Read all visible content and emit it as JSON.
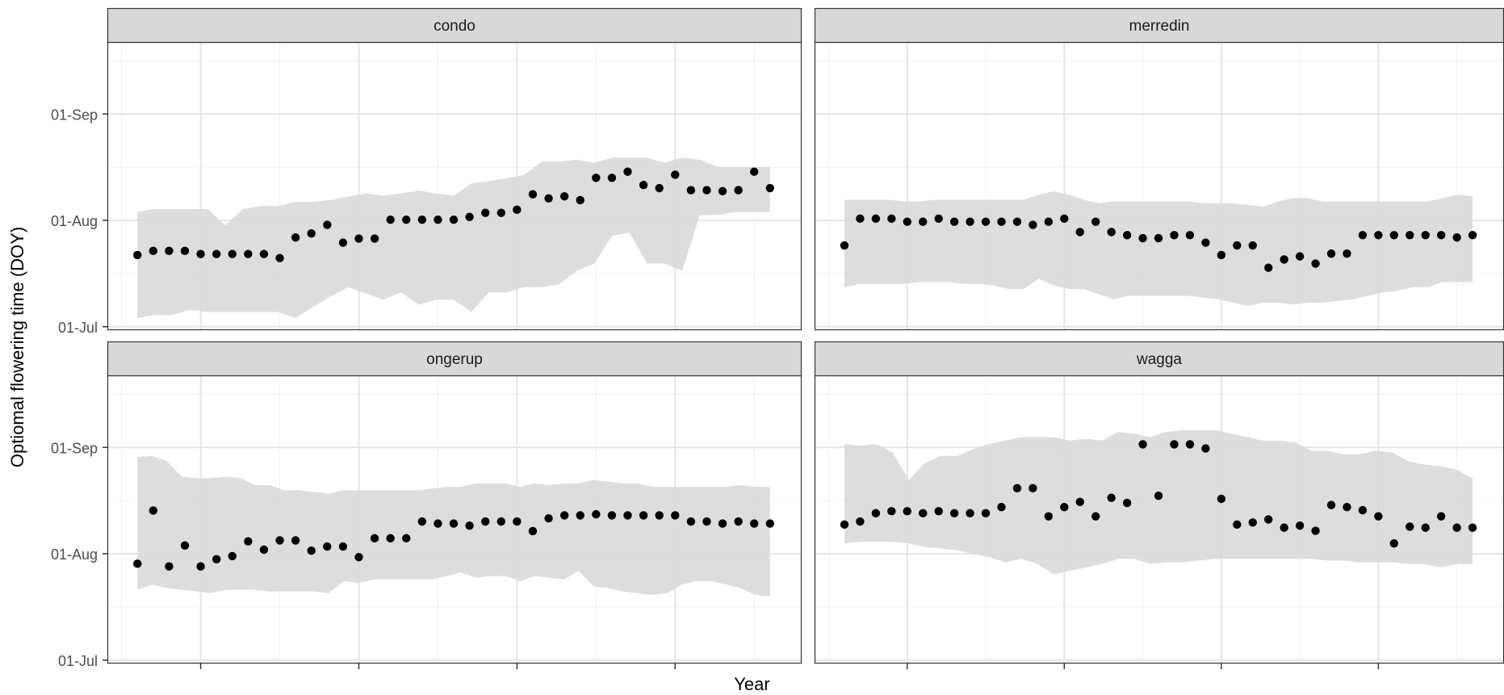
{
  "chart_data": {
    "type": "scatter",
    "xlabel": "Year",
    "ylabel": "Optiomal flowering time (DOY)",
    "grid": true,
    "y_ticks": [
      {
        "label": "01-Jul",
        "value": 182
      },
      {
        "label": "01-Aug",
        "value": 213
      },
      {
        "label": "01-Sep",
        "value": 244
      }
    ],
    "ylim": [
      181,
      265
    ],
    "x_note": "x tick labels not shown; points indexed 1..41",
    "xlim": [
      -0.9,
      43
    ],
    "x_major_ticks": [
      5,
      15,
      25,
      35
    ],
    "x_minor_ticks": [
      0,
      10,
      20,
      30,
      40
    ],
    "facets": [
      {
        "name": "condo",
        "x_start": 1,
        "points": [
          202.9,
          204.1,
          204.1,
          204.1,
          203.2,
          203.2,
          203.2,
          203.2,
          203.2,
          202,
          208,
          209.2,
          211.7,
          206.5,
          207.7,
          207.7,
          213.2,
          213.2,
          213.2,
          213.2,
          213.2,
          214,
          215.2,
          215.2,
          216.1,
          220.6,
          219.4,
          220,
          218.9,
          225.4,
          225.4,
          227.2,
          223.3,
          222.4,
          226.3,
          221.8,
          221.8,
          221.5,
          221.8,
          227.2,
          222.4
        ],
        "band_upper": [
          215.5,
          216.3,
          216.3,
          216.3,
          216.3,
          211.6,
          216.3,
          217.2,
          217.2,
          218.4,
          218.4,
          219,
          219.9,
          220.8,
          220.2,
          220.8,
          221.7,
          220.8,
          220.2,
          223.8,
          224.4,
          225.3,
          226.2,
          230.1,
          230.1,
          230.7,
          229.8,
          231.3,
          231.3,
          231.3,
          229.8,
          231.3,
          230.7,
          228.6,
          228.6,
          228.6,
          228.6
        ],
        "band_lower": [
          184.5,
          185.4,
          185.4,
          186.9,
          186.3,
          186.3,
          186.3,
          186.3,
          186.3,
          184.5,
          187.8,
          190.8,
          193.5,
          191.7,
          189.9,
          192,
          188.4,
          189.9,
          189.9,
          186.3,
          192,
          192,
          193.5,
          193.5,
          194.4,
          198.3,
          200.4,
          208.5,
          209.4,
          200.4,
          200.4,
          198.3,
          214.5,
          214.5,
          215.4,
          215.4,
          215.4,
          203.1,
          213.6,
          213.6,
          214.5
        ]
      },
      {
        "name": "merredin",
        "x_start": 1,
        "points": [
          205.7,
          213.5,
          213.5,
          213.5,
          212.6,
          212.6,
          213.5,
          212.6,
          212.6,
          212.6,
          212.6,
          212.6,
          211.7,
          212.6,
          213.5,
          209.6,
          212.6,
          209.6,
          208.7,
          207.8,
          207.8,
          208.7,
          208.7,
          206.5,
          202.9,
          205.7,
          205.7,
          199.2,
          201.6,
          202.5,
          200.4,
          203.3,
          203.3,
          208.7,
          208.7,
          208.7,
          208.7,
          208.7,
          208.7,
          208,
          208.7
        ],
        "band_upper": [
          219,
          219,
          219,
          219,
          218.5,
          218.5,
          219,
          219,
          219,
          219,
          219,
          219,
          219,
          220.5,
          221.5,
          220.5,
          219,
          218,
          218.5,
          218.5,
          218.5,
          218.5,
          218.5,
          218.5,
          218,
          218,
          218,
          217.5,
          217,
          218.5,
          219.5,
          219.5,
          218.5,
          218.5,
          218.5,
          218.5,
          218.5,
          218.5,
          218.5,
          218.5,
          219.5,
          220.5,
          220
        ],
        "band_lower": [
          193.5,
          194.5,
          194.5,
          194.5,
          194.5,
          195,
          195,
          195,
          194.5,
          194.5,
          194,
          193,
          193,
          196,
          194,
          193,
          193,
          191.5,
          190,
          191,
          191,
          191,
          191,
          191,
          190.5,
          190,
          189,
          188,
          189,
          189,
          188.5,
          189,
          189,
          189.5,
          190,
          191,
          192,
          192.5,
          193.5,
          193.5,
          195,
          195,
          195
        ]
      },
      {
        "name": "ongerup",
        "x_start": 1,
        "points": [
          210.1,
          225.6,
          209.3,
          215.4,
          209.3,
          211.4,
          212.3,
          216.6,
          214.2,
          216.9,
          216.9,
          213.9,
          215.1,
          215.1,
          212,
          217.5,
          217.5,
          217.5,
          222.4,
          221.8,
          221.8,
          221.2,
          222.4,
          222.4,
          222.4,
          219.6,
          223.3,
          224.2,
          224.2,
          224.5,
          224.2,
          224.2,
          224.2,
          224.2,
          224.2,
          222.4,
          222.4,
          221.8,
          222.4,
          221.8,
          221.8
        ],
        "band_upper": [
          241.2,
          241.5,
          240,
          235.5,
          235,
          235,
          235.5,
          235,
          233,
          233,
          231.5,
          231.5,
          231,
          230.5,
          231.5,
          231.5,
          231.5,
          231.5,
          231.5,
          231.5,
          232,
          232.5,
          232.5,
          233.5,
          233.5,
          233.5,
          232.5,
          233.5,
          233,
          233.5,
          233.5,
          234.5,
          234,
          233.5,
          233.5,
          232.5,
          232.5,
          232.5,
          232.5,
          232.5,
          232.5,
          233,
          232.5,
          232.5
        ],
        "band_lower": [
          202.5,
          204,
          203,
          202.5,
          202,
          201.5,
          202.5,
          202.5,
          202.5,
          202,
          202,
          202,
          202,
          201.5,
          205,
          204.5,
          205.5,
          205.5,
          205.5,
          205.5,
          205.5,
          206.5,
          207.5,
          206,
          206.5,
          206.5,
          205,
          206.5,
          206,
          205.5,
          208,
          203.5,
          203,
          202,
          201.5,
          201,
          201.5,
          204,
          205,
          205,
          204,
          203,
          201,
          200.5
        ]
      },
      {
        "name": "wagga",
        "x_start": 1,
        "points": [
          221.5,
          222.4,
          224.8,
          225.4,
          225.4,
          224.8,
          225.4,
          224.8,
          224.8,
          224.8,
          226.6,
          232.1,
          232.1,
          223.9,
          226.6,
          228.1,
          223.9,
          229.3,
          227.8,
          244.9,
          229.9,
          244.9,
          244.9,
          243.7,
          229,
          221.5,
          222.1,
          223,
          220.6,
          221.2,
          219.7,
          227.2,
          226.6,
          225.7,
          223.9,
          216,
          220.9,
          220.6,
          223.9,
          220.6,
          220.6
        ],
        "band_upper": [
          245,
          244.5,
          245,
          242.5,
          234.5,
          239.5,
          241.5,
          241.5,
          243.5,
          245,
          246,
          247,
          247,
          247,
          246,
          246.5,
          246,
          248.5,
          248,
          247,
          248.5,
          249,
          249,
          249,
          248,
          247,
          246,
          246,
          245.5,
          243,
          243,
          242,
          242,
          243,
          242.5,
          240,
          239,
          238.5,
          237.5,
          235,
          235
        ],
        "band_lower": [
          216,
          216.5,
          216.5,
          216.5,
          216,
          215,
          214.5,
          214,
          213,
          212,
          210.5,
          211.5,
          210,
          207,
          208,
          209,
          210,
          211.5,
          211.5,
          210,
          210.5,
          210.5,
          211,
          211.5,
          211.5,
          211.5,
          211.5,
          211.5,
          211.5,
          211.5,
          211,
          211,
          210.5,
          210.5,
          210.5,
          210,
          210,
          209,
          210,
          210
        ]
      }
    ]
  }
}
